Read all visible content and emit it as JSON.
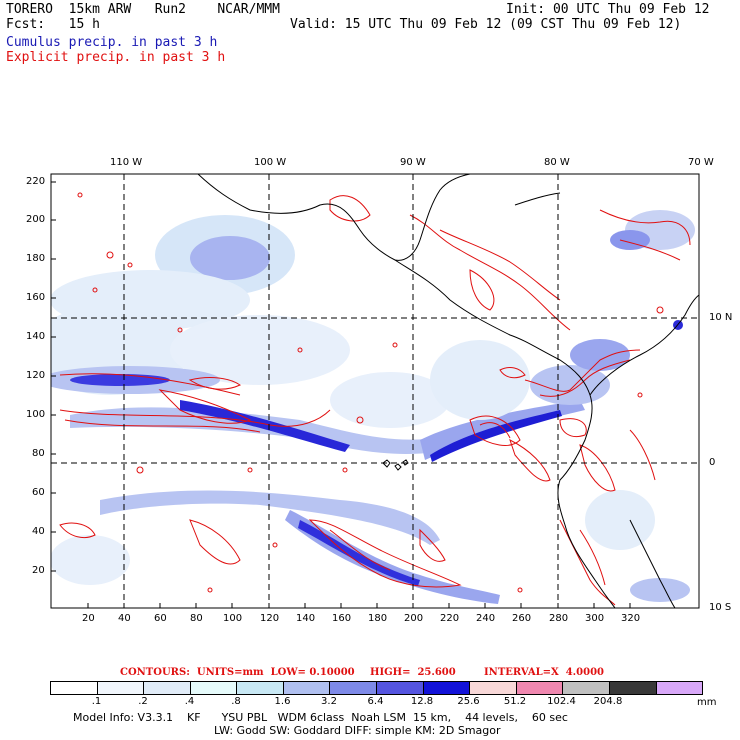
{
  "header": {
    "model": "TORERO  15km ARW   Run2    NCAR/MMM",
    "init": "Init: 00 UTC Thu 09 Feb 12",
    "fcst": "Fcst:   15 h",
    "valid": "Valid: 15 UTC Thu 09 Feb 12 (09 CST Thu 09 Feb 12)",
    "field1": "Cumulus precip. in past 3 h",
    "field2": "Explicit precip. in past 3 h"
  },
  "map": {
    "lon_labels": [
      "110 W",
      "100 W",
      "90 W",
      "80 W",
      "70 W"
    ],
    "lat_labels": [
      "10 N",
      "0",
      "10 S"
    ],
    "x_ticks": [
      "20",
      "40",
      "60",
      "80",
      "100",
      "120",
      "140",
      "160",
      "180",
      "200",
      "220",
      "240",
      "260",
      "280",
      "300",
      "320"
    ],
    "y_ticks": [
      "220",
      "200",
      "180",
      "160",
      "140",
      "120",
      "100",
      "80",
      "60",
      "40",
      "20"
    ]
  },
  "contours": {
    "label": "CONTOURS:  UNITS=mm  LOW= 0.10000",
    "high": "HIGH=  25.600",
    "interval": "INTERVAL=X  4.0000"
  },
  "colorbar": {
    "labels": [
      ".1",
      ".2",
      ".4",
      ".8",
      "1.6",
      "3.2",
      "6.4",
      "12.8",
      "25.6",
      "51.2",
      "102.4",
      "204.8"
    ],
    "units": "mm",
    "colors": [
      "#ffffff",
      "#f1f6fc",
      "#e1ecf8",
      "#e6fbfb",
      "#c8e8f4",
      "#b0c0f0",
      "#7e8ae8",
      "#5555e0",
      "#1212d8",
      "#f8d8d8",
      "#f088b0",
      "#c0c0c0",
      "#383838",
      "#d8a8f8"
    ]
  },
  "footer": {
    "line1": "Model Info: V3.3.1    KF      YSU PBL   WDM 6class  Noah LSM  15 km,    44 levels,    60 sec",
    "line2": "LW: Godd SW: Goddard DIFF: simple KM: 2D Smagor"
  }
}
